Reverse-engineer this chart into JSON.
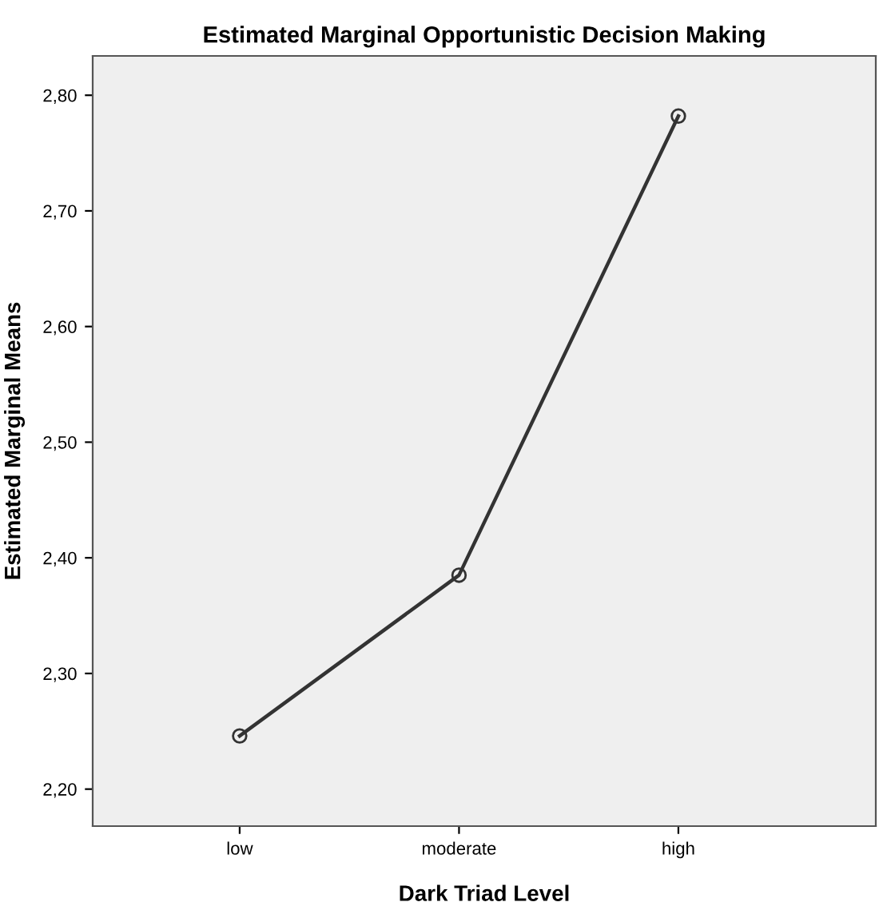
{
  "chart_data": {
    "type": "line",
    "title": "Estimated Marginal Opportunistic Decision Making",
    "xlabel": "Dark Triad Level",
    "ylabel": "Estimated Marginal Means",
    "categories": [
      "low",
      "moderate",
      "high"
    ],
    "series": [
      {
        "color": "#333333",
        "values": [
          2.246,
          2.385,
          2.782
        ]
      }
    ],
    "ylim": [
      2.168,
      2.834
    ],
    "yticks": [
      {
        "value": 2.2,
        "label": "2,20"
      },
      {
        "value": 2.3,
        "label": "2,30"
      },
      {
        "value": 2.4,
        "label": "2,40"
      },
      {
        "value": 2.5,
        "label": "2,50"
      },
      {
        "value": 2.6,
        "label": "2,60"
      },
      {
        "value": 2.7,
        "label": "2,70"
      },
      {
        "value": 2.8,
        "label": "2,80"
      }
    ],
    "grid": false,
    "legend": false,
    "marker": "circle",
    "line_style": "solid"
  }
}
